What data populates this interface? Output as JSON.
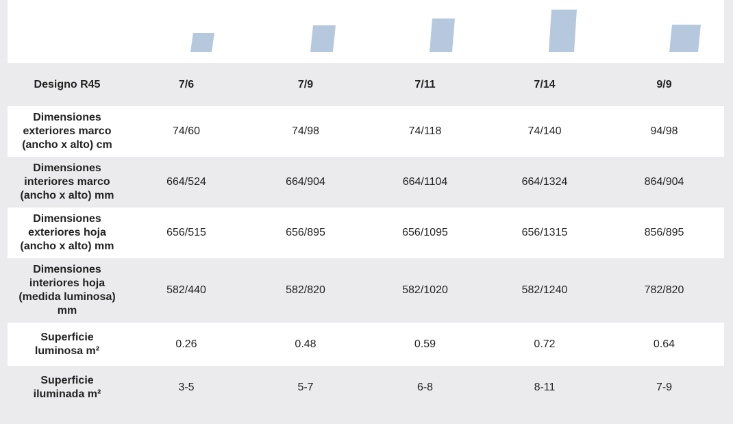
{
  "table": {
    "header": [
      "Designo R45",
      "7/6",
      "7/9",
      "7/11",
      "7/14",
      "9/9"
    ],
    "rows": [
      {
        "label": "Dimensiones exteriores marco (ancho x alto)  cm",
        "values": [
          "74/60",
          "74/98",
          "74/118",
          "74/140",
          "94/98"
        ]
      },
      {
        "label": "Dimensiones interiores marco (ancho x alto)  mm",
        "values": [
          "664/524",
          "664/904",
          "664/1104",
          "664/1324",
          "864/904"
        ]
      },
      {
        "label": "Dimensiones exteriores hoja (ancho x alto) mm",
        "values": [
          "656/515",
          "656/895",
          "656/1095",
          "656/1315",
          "856/895"
        ]
      },
      {
        "label": "Dimensiones interiores hoja (medida luminosa) mm",
        "values": [
          "582/440",
          "582/820",
          "582/1020",
          "582/1240",
          "782/820"
        ]
      },
      {
        "label": "Superficie luminosa m²",
        "values": [
          "0.26",
          "0.48",
          "0.59",
          "0.72",
          "0.64"
        ]
      },
      {
        "label": "Superficie iluminada  m²",
        "values": [
          "3-5",
          "5-7",
          "6-8",
          "8-11",
          "7-9"
        ]
      }
    ]
  }
}
